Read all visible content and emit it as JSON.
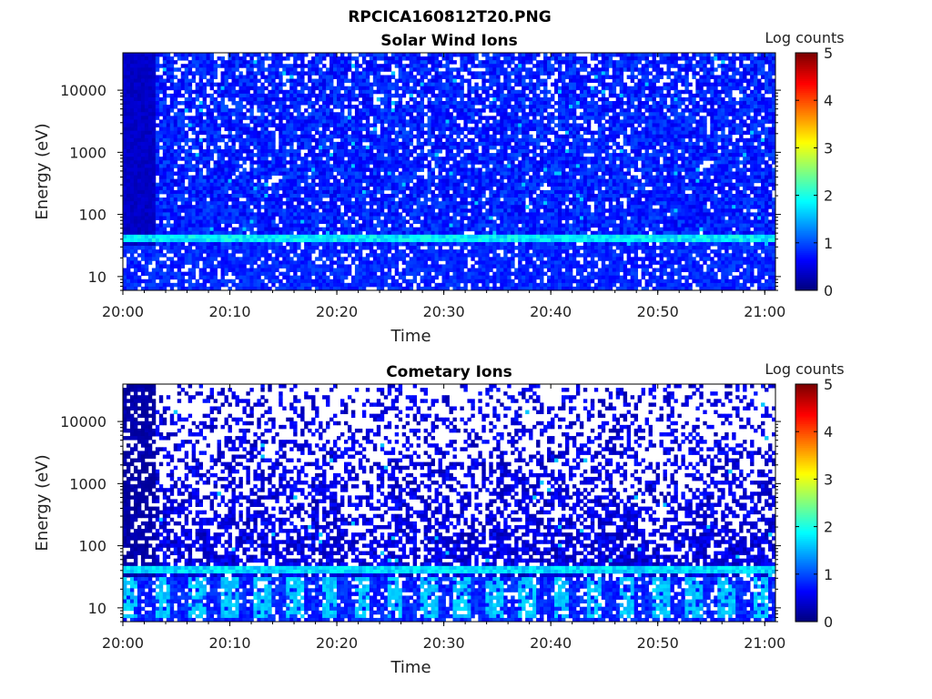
{
  "figure_title": "RPCICA160812T20.PNG",
  "chart_data": [
    {
      "type": "heatmap",
      "title": "Solar Wind Ions",
      "xlabel": "Time",
      "ylabel": "Energy (eV)",
      "x_range": [
        "20:00",
        "21:01"
      ],
      "x_ticks": [
        "20:00",
        "20:10",
        "20:20",
        "20:30",
        "20:40",
        "20:50",
        "21:00"
      ],
      "y_scale": "log",
      "y_range": [
        6,
        40000
      ],
      "y_ticks": [
        10,
        100,
        1000,
        10000
      ],
      "y_tick_labels": [
        "10",
        "100",
        "1000",
        "10000"
      ],
      "colorbar": {
        "label": "Log counts",
        "range": [
          0,
          5
        ],
        "ticks": [
          "0",
          "1",
          "2",
          "3",
          "4",
          "5"
        ],
        "colormap": "jet"
      },
      "features": {
        "data_starts": "20:03",
        "band_energy_ev": 43,
        "band_log_counts": 1.8,
        "background_log_counts": 0.5,
        "empty_bin_fraction": 0.15,
        "low_energy_pulses": false
      }
    },
    {
      "type": "heatmap",
      "title": "Cometary Ions",
      "xlabel": "Time",
      "ylabel": "Energy (eV)",
      "x_range": [
        "20:00",
        "21:01"
      ],
      "x_ticks": [
        "20:00",
        "20:10",
        "20:20",
        "20:30",
        "20:40",
        "20:50",
        "21:00"
      ],
      "y_scale": "log",
      "y_range": [
        6,
        40000
      ],
      "y_ticks": [
        10,
        100,
        1000,
        10000
      ],
      "y_tick_labels": [
        "10",
        "100",
        "1000",
        "10000"
      ],
      "colorbar": {
        "label": "Log counts",
        "range": [
          0,
          5
        ],
        "ticks": [
          "0",
          "1",
          "2",
          "3",
          "4",
          "5"
        ],
        "colormap": "jet"
      },
      "features": {
        "data_starts": "20:03",
        "band_energy_ev": 43,
        "band_log_counts": 1.7,
        "background_log_counts": 0.2,
        "empty_bin_fraction": 0.6,
        "low_energy_pulses": true,
        "pulse_log_counts": 1.6
      }
    }
  ]
}
